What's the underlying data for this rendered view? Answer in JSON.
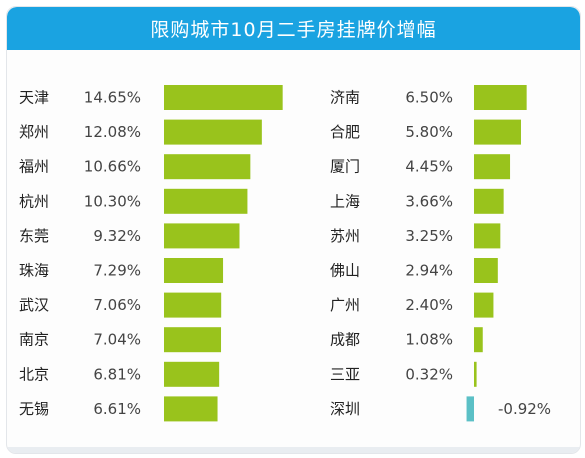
{
  "chart_data": {
    "type": "bar",
    "title": "限购城市10月二手房挂牌价增幅",
    "xlabel": "",
    "ylabel": "",
    "unit": "%",
    "colors": {
      "positive": "#99c31c",
      "negative": "#5bc0c6",
      "header": "#1aa3e1"
    },
    "columns": [
      {
        "categories": [
          "天津",
          "郑州",
          "福州",
          "杭州",
          "东莞",
          "珠海",
          "武汉",
          "南京",
          "北京",
          "无锡"
        ],
        "values": [
          14.65,
          12.08,
          10.66,
          10.3,
          9.32,
          7.29,
          7.06,
          7.04,
          6.81,
          6.61
        ],
        "labels": [
          "14.65%",
          "12.08%",
          "10.66%",
          "10.30%",
          "9.32%",
          "7.29%",
          "7.06%",
          "7.04%",
          "6.81%",
          "6.61%"
        ]
      },
      {
        "categories": [
          "济南",
          "合肥",
          "厦门",
          "上海",
          "苏州",
          "佛山",
          "广州",
          "成都",
          "三亚",
          "深圳"
        ],
        "values": [
          6.5,
          5.8,
          4.45,
          3.66,
          3.25,
          2.94,
          2.4,
          1.08,
          0.32,
          -0.92
        ],
        "labels": [
          "6.50%",
          "5.80%",
          "4.45%",
          "3.66%",
          "3.25%",
          "2.94%",
          "2.40%",
          "1.08%",
          "0.32%",
          "-0.92%"
        ]
      }
    ]
  }
}
